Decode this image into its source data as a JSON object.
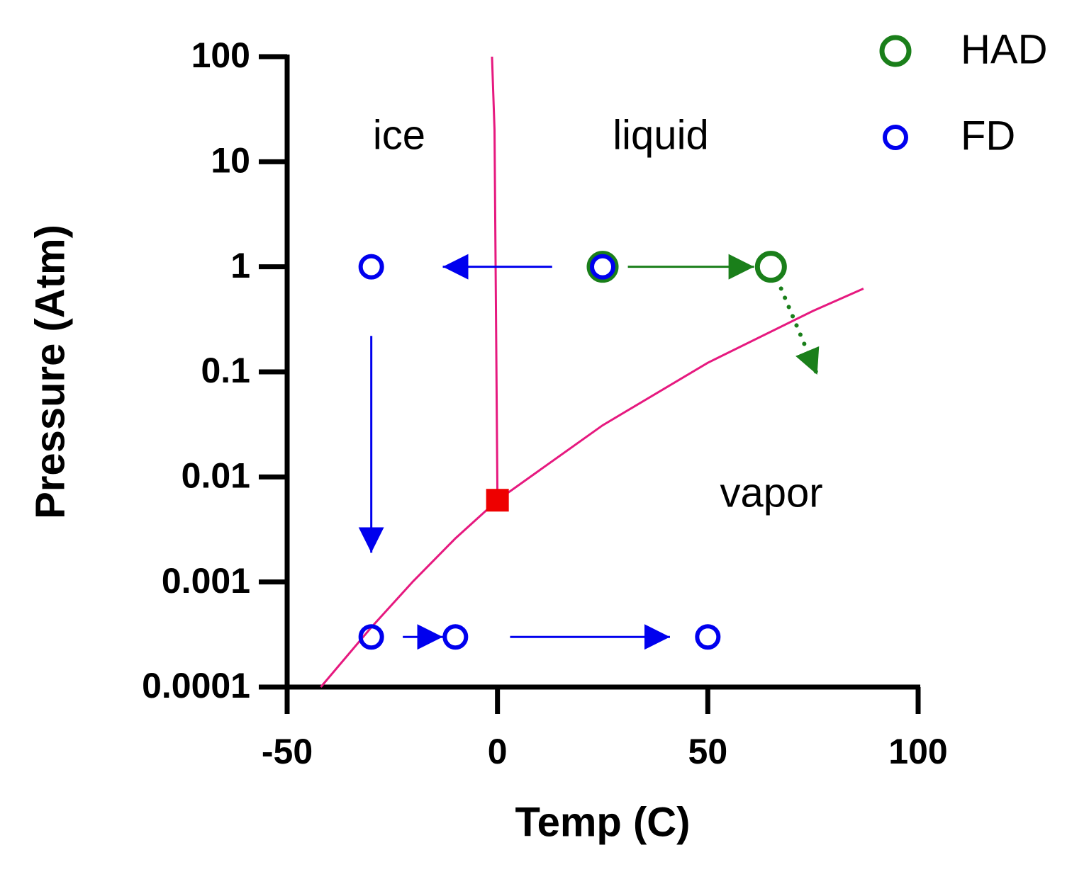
{
  "chart_data": {
    "type": "scatter",
    "x_label": "Temp (C)",
    "y_label": "Pressure (Atm)",
    "xlim": [
      -50,
      100
    ],
    "xticks": [
      -50,
      0,
      50,
      100
    ],
    "ylim": [
      0.0001,
      100
    ],
    "yticks": [
      100,
      10,
      1,
      0.1,
      0.01,
      0.001,
      0.0001
    ],
    "ylog": true,
    "legend": "upper right",
    "series": [
      {
        "name": "HAD",
        "color": "#1a7f1a",
        "x": [
          25,
          65
        ],
        "values": [
          1,
          1
        ]
      },
      {
        "name": "FD",
        "color": "#0000ee",
        "x": [
          -30,
          25,
          -30,
          -10,
          50
        ],
        "values": [
          1,
          1,
          0.0003,
          0.0003,
          0.0003
        ]
      }
    ],
    "lines": [
      {
        "color": "#e6197f",
        "x": [
          -1.3,
          -0.7,
          0
        ],
        "values": [
          100,
          20,
          0.006
        ]
      },
      {
        "color": "#e6197f",
        "x": [
          -42,
          -30,
          -20,
          -10,
          0,
          25,
          50,
          75,
          87
        ],
        "values": [
          0.0001,
          0.00037,
          0.00102,
          0.0026,
          0.006,
          0.031,
          0.122,
          0.38,
          0.62
        ]
      }
    ],
    "triple_point": {
      "x": 0,
      "y": 0.006,
      "color": "#ee0000"
    },
    "arrows": [
      {
        "color": "#0000ee",
        "from": [
          13,
          1
        ],
        "to": [
          -13,
          1
        ],
        "dotted": false
      },
      {
        "color": "#1a7f1a",
        "from": [
          31,
          1
        ],
        "to": [
          61,
          1
        ],
        "dotted": false
      },
      {
        "color": "#1a7f1a",
        "from": [
          66.5,
          0.76
        ],
        "to": [
          76,
          0.094
        ],
        "dotted": true
      },
      {
        "color": "#0000ee",
        "from": [
          -30,
          0.22
        ],
        "to": [
          -30,
          0.0019
        ],
        "dotted": false
      },
      {
        "color": "#0000ee",
        "from": [
          -22.5,
          0.0003
        ],
        "to": [
          -13,
          0.0003
        ],
        "dotted": false
      },
      {
        "color": "#0000ee",
        "from": [
          3,
          0.0003
        ],
        "to": [
          41,
          0.0003
        ],
        "dotted": false
      }
    ],
    "annotations": [
      "ice",
      "liquid",
      "vapor"
    ]
  }
}
